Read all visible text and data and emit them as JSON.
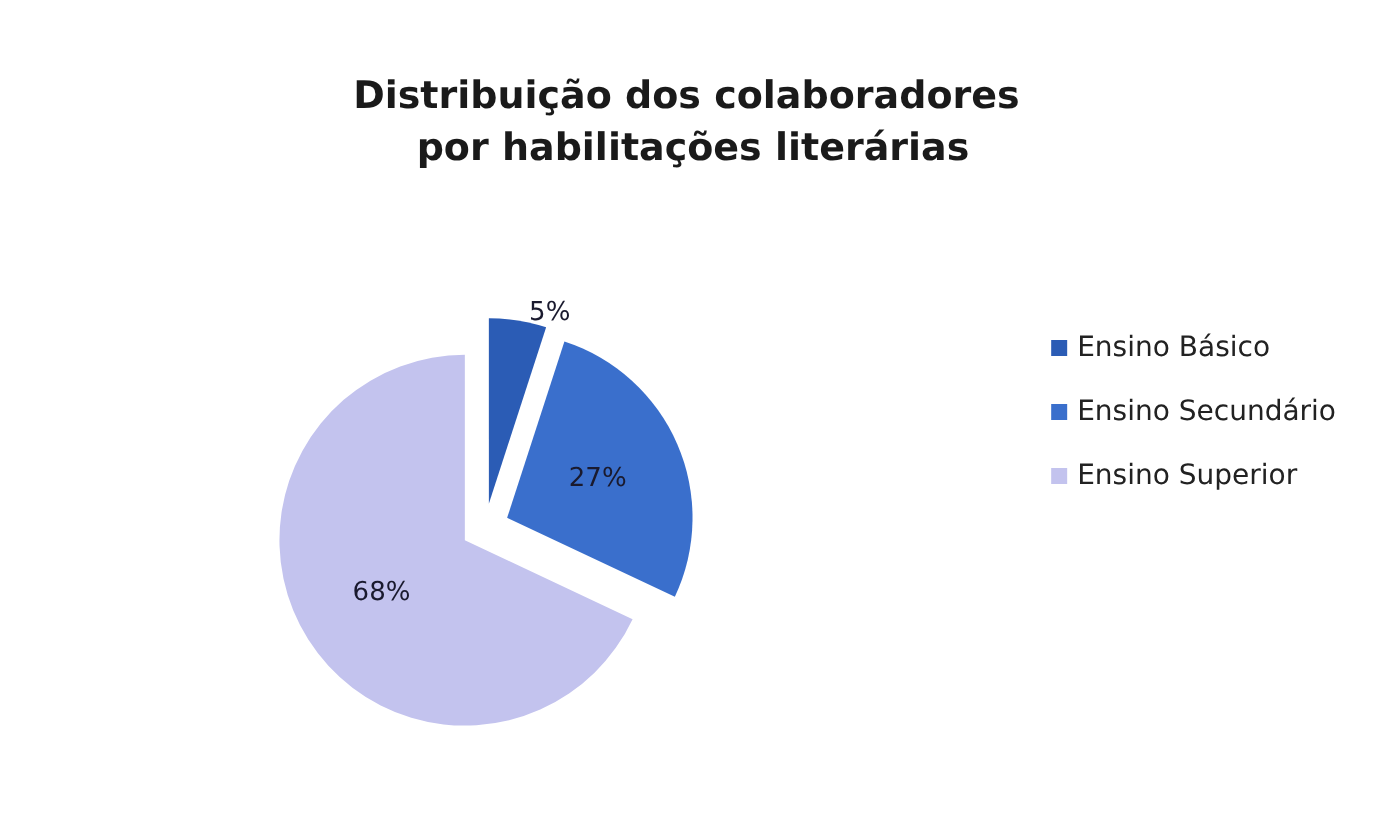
{
  "chart_data": {
    "type": "pie",
    "title": "Distribuição dos colaboradores por habilitações literárias",
    "categories": [
      "Ensino Básico",
      "Ensino Secundário",
      "Ensino Superior"
    ],
    "values": [
      5,
      27,
      68
    ],
    "value_labels": [
      "5%",
      "27%",
      "68%"
    ],
    "colors": [
      "#2b5cb5",
      "#3a6fcc",
      "#c3c3ee"
    ],
    "legend": "right"
  }
}
